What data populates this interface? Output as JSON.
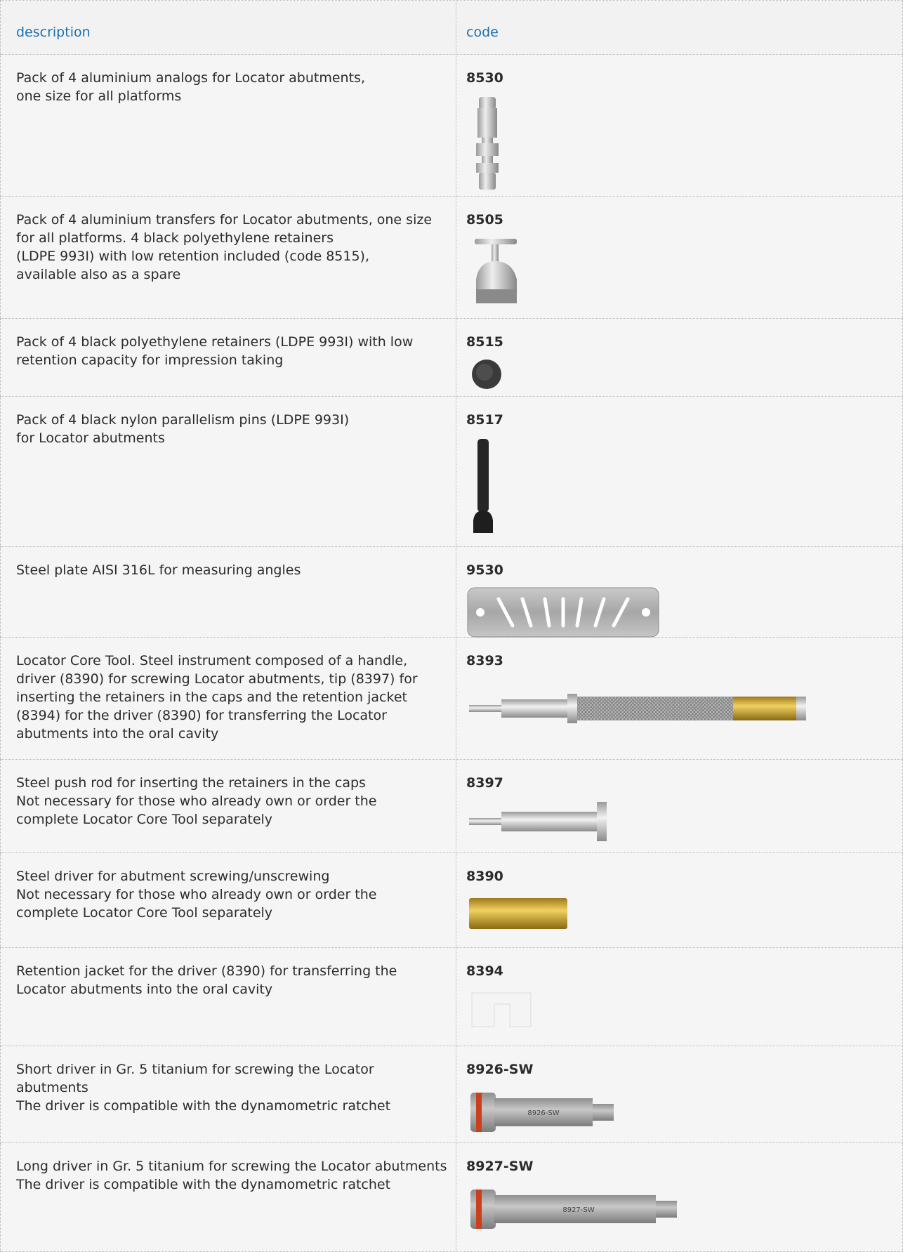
{
  "header": {
    "description": "description",
    "code": "code"
  },
  "rows": [
    {
      "description": [
        "Pack of 4 aluminium analogs for Locator abutments,",
        "one size for all platforms"
      ],
      "code": "8530"
    },
    {
      "description": [
        "Pack of 4 aluminium transfers for Locator abutments, one size",
        "for all platforms. 4 black polyethylene retainers",
        "(LDPE 993I) with low retention included (code 8515),",
        "available also as a spare"
      ],
      "code": "8505"
    },
    {
      "description": [
        "Pack of 4 black polyethylene retainers (LDPE 993I) with low",
        "retention capacity for impression taking"
      ],
      "code": "8515"
    },
    {
      "description": [
        "Pack of 4 black nylon parallelism pins (LDPE 993I)",
        "for Locator abutments"
      ],
      "code": "8517"
    },
    {
      "description": [
        "Steel plate AISI 316L for measuring angles"
      ],
      "code": "9530"
    },
    {
      "description": [
        "Locator Core Tool. Steel instrument composed of a handle,",
        "driver (8390) for screwing Locator abutments, tip (8397) for",
        "inserting the retainers in the caps and the retention jacket",
        "(8394) for the driver (8390) for transferring the Locator",
        "abutments into the oral cavity"
      ],
      "code": "8393"
    },
    {
      "description": [
        "Steel push rod for inserting the retainers in the caps",
        "Not necessary for those who already own or order the",
        "complete Locator Core Tool separately"
      ],
      "code": "8397"
    },
    {
      "description": [
        "Steel driver for abutment screwing/unscrewing",
        "Not necessary for those who already own or order the",
        "complete Locator Core Tool separately"
      ],
      "code": "8390"
    },
    {
      "description": [
        "Retention jacket for the driver (8390) for transferring the",
        "Locator abutments into the oral cavity"
      ],
      "code": "8394"
    },
    {
      "description": [
        "Short driver in Gr. 5 titanium for screwing the Locator abutments",
        "The driver is compatible with the dynamometric ratchet"
      ],
      "code": "8926-SW",
      "image_label": "8926-SW"
    },
    {
      "description": [
        "Long driver in Gr. 5 titanium for screwing the Locator abutments",
        "The driver is compatible with the dynamometric ratchet"
      ],
      "code": "8927-SW",
      "image_label": "8927-SW"
    }
  ]
}
